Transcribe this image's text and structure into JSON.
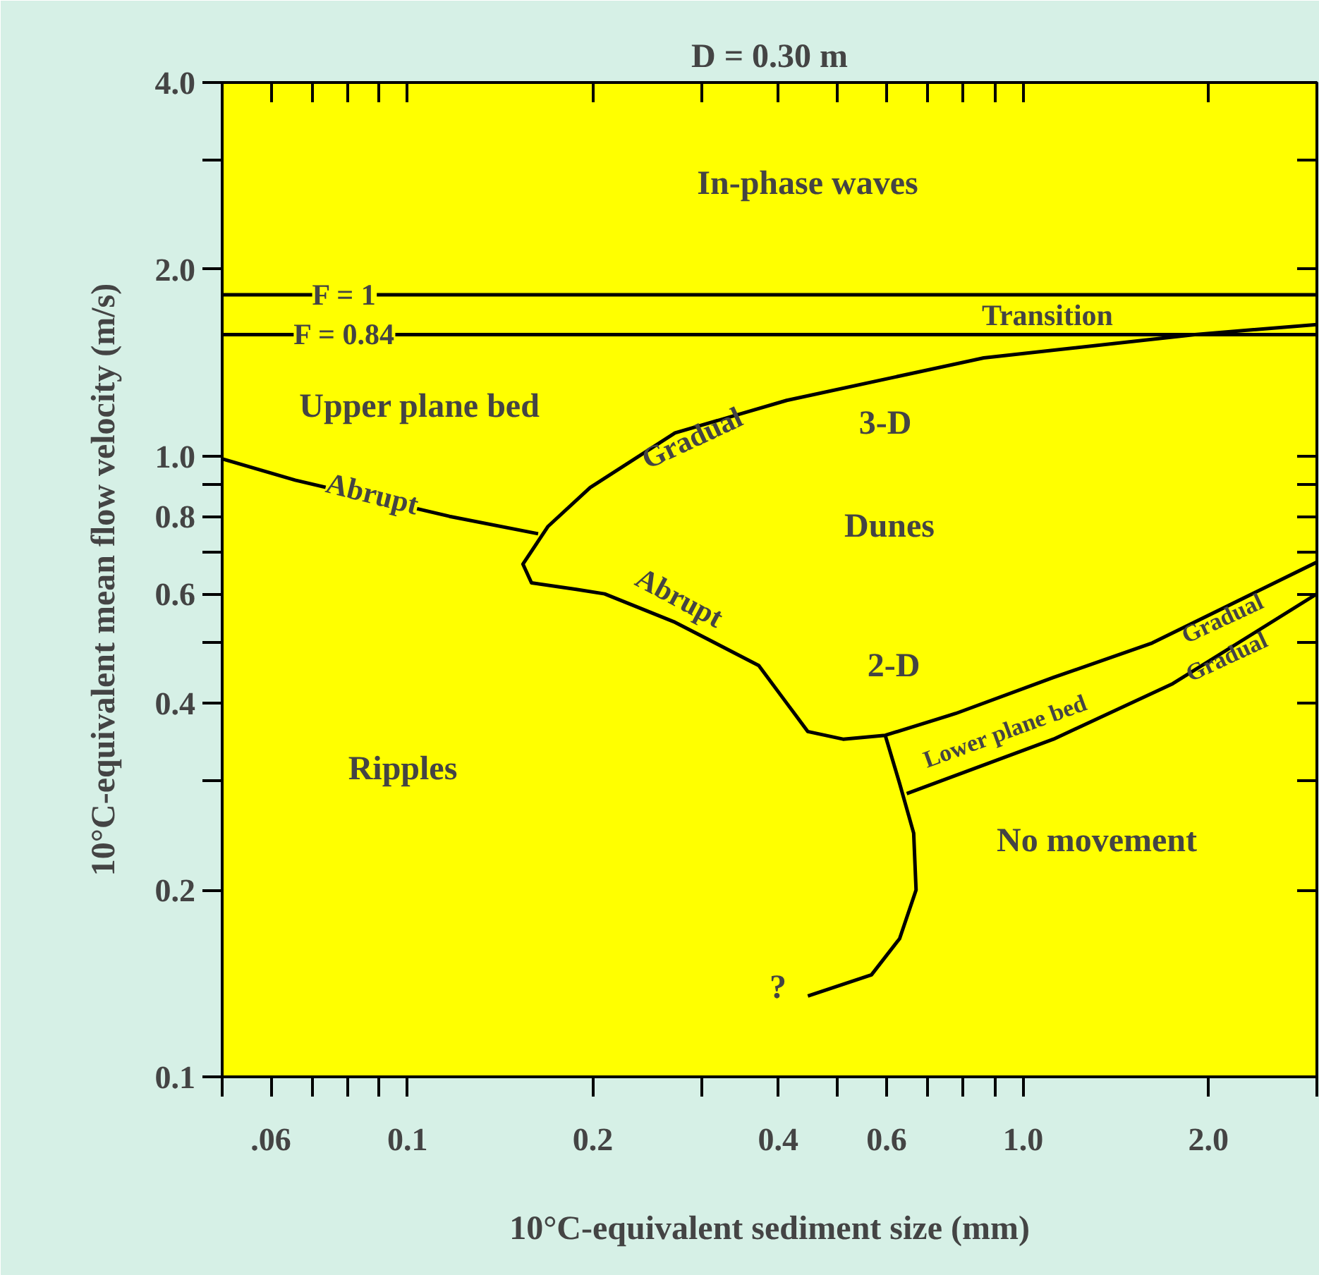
{
  "chart_data": {
    "type": "line",
    "title": "D = 0.30 m",
    "xlabel": "10°C-equivalent sediment size (mm)",
    "ylabel": "10°C-equivalent mean flow velocity (m/s)",
    "log": "xy",
    "grid": false,
    "marker": "none",
    "line_style": "solid",
    "xlim": [
      0.05,
      3.0
    ],
    "ylim": [
      0.1,
      4.0
    ],
    "xticks": [
      {
        "value": 0.05,
        "label": null
      },
      {
        "value": 0.06,
        "label": ".06"
      },
      {
        "value": 0.07,
        "label": null
      },
      {
        "value": 0.08,
        "label": null
      },
      {
        "value": 0.09,
        "label": null
      },
      0.1,
      0.2,
      {
        "value": 0.3,
        "label": null
      },
      0.4,
      {
        "value": 0.5,
        "label": null
      },
      0.6,
      {
        "value": 0.7,
        "label": null
      },
      {
        "value": 0.8,
        "label": null
      },
      {
        "value": 0.9,
        "label": null
      },
      {
        "value": 1.0,
        "label": "1.0"
      },
      {
        "value": 2.0,
        "label": "2.0"
      },
      {
        "value": 3.0,
        "label": null
      }
    ],
    "yticks": [
      0.1,
      0.2,
      {
        "value": 0.3,
        "label": null
      },
      0.4,
      {
        "value": 0.5,
        "label": null
      },
      0.6,
      {
        "value": 0.7,
        "label": null
      },
      0.8,
      {
        "value": 0.9,
        "label": null
      },
      {
        "value": 1.0,
        "label": "1.0"
      },
      {
        "value": 2.0,
        "label": "2.0"
      },
      {
        "value": 3.0,
        "label": null
      },
      {
        "value": 4.0,
        "label": "4.0"
      }
    ],
    "series": [
      {
        "color": "#000000",
        "x": [
          0.05,
          3.0
        ],
        "values": [
          1.82,
          1.82
        ]
      },
      {
        "color": "#000000",
        "x": [
          0.05,
          3.0
        ],
        "values": [
          1.57,
          1.57
        ]
      },
      {
        "color": "#000000",
        "x": [
          0.05,
          0.0657,
          0.117,
          0.163
        ],
        "values": [
          0.99,
          0.915,
          0.8,
          0.75
        ]
      },
      {
        "color": "#000000",
        "x": [
          3.0,
          1.9,
          0.863,
          0.413,
          0.272,
          0.198,
          0.169,
          0.154,
          0.159,
          0.188,
          0.209,
          0.272,
          0.372,
          0.413,
          0.447,
          0.51,
          0.597,
          0.777,
          1.12,
          1.62,
          3.0
        ],
        "values": [
          1.63,
          1.57,
          1.44,
          1.23,
          1.09,
          0.89,
          0.77,
          0.67,
          0.625,
          0.61,
          0.6,
          0.54,
          0.46,
          0.4,
          0.36,
          0.35,
          0.355,
          0.385,
          0.44,
          0.5,
          0.675
        ]
      },
      {
        "color": "#000000",
        "x": [
          0.597,
          0.63,
          0.664,
          0.67,
          0.63,
          0.567,
          0.447
        ],
        "values": [
          0.355,
          0.297,
          0.247,
          0.2,
          0.167,
          0.146,
          0.135
        ]
      },
      {
        "color": "#000000",
        "x": [
          0.647,
          1.12,
          1.75,
          3.0
        ],
        "values": [
          0.286,
          0.35,
          0.43,
          0.6
        ]
      }
    ],
    "annotations": [
      "In-phase waves",
      {
        "text": "F = 1",
        "x": 0.079,
        "y": 1.82
      },
      {
        "text": "F = 0.84",
        "x": 0.079,
        "y": 1.57
      },
      "Transition",
      "Upper plane bed",
      "3-D",
      "Dunes",
      "2-D",
      "Ripples",
      "No movement",
      "?",
      "Gradual",
      {
        "text": "Abrupt",
        "x": 0.0877,
        "y": 0.87
      },
      {
        "text": "Abrupt",
        "x": 0.268,
        "y": 0.55
      },
      "Lower plane bed",
      "Gradual",
      {
        "text": "Gradual",
        "x": 2.14,
        "y": 0.475
      }
    ]
  }
}
